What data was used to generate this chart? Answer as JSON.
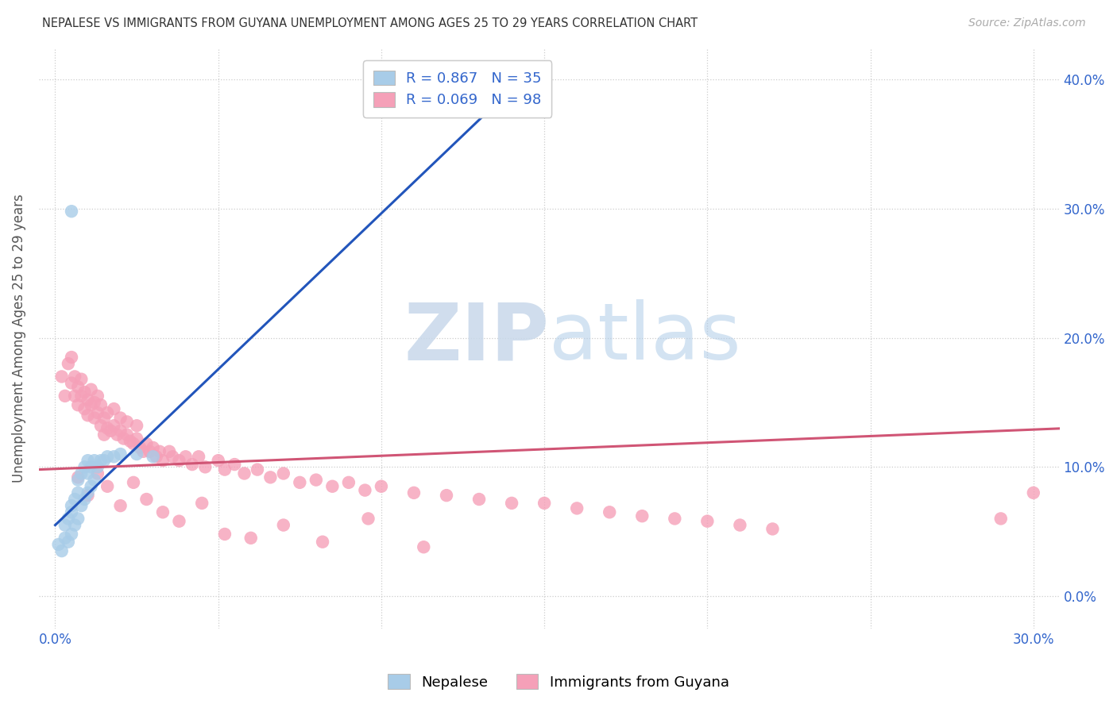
{
  "title": "NEPALESE VS IMMIGRANTS FROM GUYANA UNEMPLOYMENT AMONG AGES 25 TO 29 YEARS CORRELATION CHART",
  "source": "Source: ZipAtlas.com",
  "ylabel": "Unemployment Among Ages 25 to 29 years",
  "xlim_min": -0.005,
  "xlim_max": 0.308,
  "ylim_min": -0.025,
  "ylim_max": 0.425,
  "yticks": [
    0.0,
    0.1,
    0.2,
    0.3,
    0.4
  ],
  "xticks": [
    0.0,
    0.05,
    0.1,
    0.15,
    0.2,
    0.25,
    0.3
  ],
  "legend_blue_R": "0.867",
  "legend_blue_N": "35",
  "legend_pink_R": "0.069",
  "legend_pink_N": "98",
  "legend_label_blue": "Nepalese",
  "legend_label_pink": "Immigrants from Guyana",
  "blue_color": "#a8cce8",
  "pink_color": "#f5a0b8",
  "blue_line_color": "#2255bb",
  "pink_line_color": "#d05575",
  "watermark_zip": "ZIP",
  "watermark_atlas": "atlas",
  "text_color": "#3366cc",
  "nepalese_x": [
    0.001,
    0.002,
    0.003,
    0.003,
    0.004,
    0.004,
    0.005,
    0.005,
    0.005,
    0.006,
    0.006,
    0.007,
    0.007,
    0.007,
    0.008,
    0.008,
    0.009,
    0.009,
    0.01,
    0.01,
    0.01,
    0.011,
    0.011,
    0.012,
    0.012,
    0.013,
    0.014,
    0.015,
    0.016,
    0.018,
    0.02,
    0.025,
    0.03,
    0.005,
    0.13
  ],
  "nepalese_y": [
    0.04,
    0.035,
    0.045,
    0.055,
    0.042,
    0.06,
    0.048,
    0.065,
    0.07,
    0.055,
    0.075,
    0.06,
    0.08,
    0.09,
    0.07,
    0.095,
    0.075,
    0.1,
    0.08,
    0.095,
    0.105,
    0.085,
    0.1,
    0.09,
    0.105,
    0.1,
    0.105,
    0.105,
    0.108,
    0.108,
    0.11,
    0.11,
    0.108,
    0.298,
    0.378
  ],
  "guyana_x": [
    0.002,
    0.003,
    0.004,
    0.005,
    0.005,
    0.006,
    0.006,
    0.007,
    0.007,
    0.008,
    0.008,
    0.009,
    0.009,
    0.01,
    0.01,
    0.011,
    0.011,
    0.012,
    0.012,
    0.013,
    0.013,
    0.014,
    0.014,
    0.015,
    0.015,
    0.016,
    0.016,
    0.017,
    0.018,
    0.018,
    0.019,
    0.02,
    0.02,
    0.021,
    0.022,
    0.022,
    0.023,
    0.024,
    0.025,
    0.025,
    0.026,
    0.027,
    0.028,
    0.029,
    0.03,
    0.031,
    0.032,
    0.033,
    0.035,
    0.036,
    0.038,
    0.04,
    0.042,
    0.044,
    0.046,
    0.05,
    0.052,
    0.055,
    0.058,
    0.062,
    0.066,
    0.07,
    0.075,
    0.08,
    0.085,
    0.09,
    0.095,
    0.1,
    0.11,
    0.12,
    0.13,
    0.14,
    0.15,
    0.16,
    0.17,
    0.18,
    0.19,
    0.2,
    0.21,
    0.22,
    0.007,
    0.01,
    0.013,
    0.016,
    0.02,
    0.024,
    0.028,
    0.033,
    0.038,
    0.045,
    0.052,
    0.06,
    0.07,
    0.082,
    0.096,
    0.113,
    0.3,
    0.29
  ],
  "guyana_y": [
    0.17,
    0.155,
    0.18,
    0.165,
    0.185,
    0.155,
    0.17,
    0.148,
    0.162,
    0.155,
    0.168,
    0.145,
    0.158,
    0.14,
    0.152,
    0.148,
    0.16,
    0.138,
    0.15,
    0.142,
    0.155,
    0.132,
    0.148,
    0.125,
    0.138,
    0.13,
    0.142,
    0.128,
    0.132,
    0.145,
    0.125,
    0.128,
    0.138,
    0.122,
    0.125,
    0.135,
    0.12,
    0.118,
    0.122,
    0.132,
    0.115,
    0.112,
    0.118,
    0.112,
    0.115,
    0.108,
    0.112,
    0.105,
    0.112,
    0.108,
    0.105,
    0.108,
    0.102,
    0.108,
    0.1,
    0.105,
    0.098,
    0.102,
    0.095,
    0.098,
    0.092,
    0.095,
    0.088,
    0.09,
    0.085,
    0.088,
    0.082,
    0.085,
    0.08,
    0.078,
    0.075,
    0.072,
    0.072,
    0.068,
    0.065,
    0.062,
    0.06,
    0.058,
    0.055,
    0.052,
    0.092,
    0.078,
    0.095,
    0.085,
    0.07,
    0.088,
    0.075,
    0.065,
    0.058,
    0.072,
    0.048,
    0.045,
    0.055,
    0.042,
    0.06,
    0.038,
    0.08,
    0.06
  ],
  "blue_line_x": [
    0.0,
    0.145
  ],
  "blue_line_y": [
    0.055,
    0.405
  ],
  "pink_line_x": [
    -0.005,
    0.31
  ],
  "pink_line_y": [
    0.098,
    0.13
  ]
}
